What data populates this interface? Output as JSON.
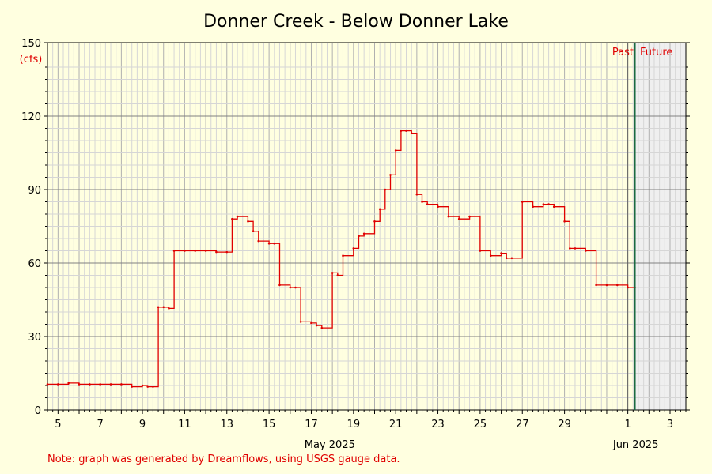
{
  "chart_data": {
    "type": "line",
    "title": "Donner Creek - Below Donner Lake",
    "ylabel": "(cfs)",
    "ylim": [
      0,
      150
    ],
    "yticks": [
      0,
      30,
      60,
      90,
      120,
      150
    ],
    "xlim": [
      "2025-05-04T12:00",
      "2025-06-03T18:00"
    ],
    "xticks": [
      "5",
      "7",
      "9",
      "11",
      "13",
      "15",
      "17",
      "19",
      "21",
      "23",
      "25",
      "27",
      "29",
      "1",
      "3"
    ],
    "month_labels": [
      "May 2025",
      "Jun 2025"
    ],
    "grid": true,
    "now": "2025-06-01T08:00",
    "past_label": "Past",
    "future_label": "Future",
    "series": [
      {
        "color": "#e00000",
        "x": [
          "2025-05-04T12:00",
          "2025-05-05T00:00",
          "2025-05-05T12:00",
          "2025-05-06T00:00",
          "2025-05-06T12:00",
          "2025-05-07T00:00",
          "2025-05-07T12:00",
          "2025-05-08T00:00",
          "2025-05-08T12:00",
          "2025-05-09T00:00",
          "2025-05-09T06:00",
          "2025-05-09T12:00",
          "2025-05-09T18:00",
          "2025-05-10T00:00",
          "2025-05-10T06:00",
          "2025-05-10T12:00",
          "2025-05-11T00:00",
          "2025-05-11T12:00",
          "2025-05-12T00:00",
          "2025-05-12T12:00",
          "2025-05-13T00:00",
          "2025-05-13T06:00",
          "2025-05-13T12:00",
          "2025-05-14T00:00",
          "2025-05-14T06:00",
          "2025-05-14T12:00",
          "2025-05-15T00:00",
          "2025-05-15T06:00",
          "2025-05-15T12:00",
          "2025-05-16T00:00",
          "2025-05-16T06:00",
          "2025-05-16T12:00",
          "2025-05-17T00:00",
          "2025-05-17T06:00",
          "2025-05-17T12:00",
          "2025-05-18T00:00",
          "2025-05-18T06:00",
          "2025-05-18T12:00",
          "2025-05-19T00:00",
          "2025-05-19T06:00",
          "2025-05-19T12:00",
          "2025-05-20T00:00",
          "2025-05-20T06:00",
          "2025-05-20T12:00",
          "2025-05-20T18:00",
          "2025-05-21T00:00",
          "2025-05-21T06:00",
          "2025-05-21T12:00",
          "2025-05-21T18:00",
          "2025-05-22T00:00",
          "2025-05-22T06:00",
          "2025-05-22T12:00",
          "2025-05-23T00:00",
          "2025-05-23T12:00",
          "2025-05-24T00:00",
          "2025-05-24T12:00",
          "2025-05-25T00:00",
          "2025-05-25T12:00",
          "2025-05-26T00:00",
          "2025-05-26T06:00",
          "2025-05-26T12:00",
          "2025-05-27T00:00",
          "2025-05-27T12:00",
          "2025-05-28T00:00",
          "2025-05-28T06:00",
          "2025-05-28T12:00",
          "2025-05-29T00:00",
          "2025-05-29T06:00",
          "2025-05-29T12:00",
          "2025-05-30T00:00",
          "2025-05-30T12:00",
          "2025-05-31T00:00",
          "2025-05-31T12:00",
          "2025-06-01T00:00",
          "2025-06-01T08:00"
        ],
        "y": [
          10.5,
          10.5,
          11,
          10.5,
          10.5,
          10.5,
          10.5,
          10.5,
          9.5,
          10,
          9.5,
          9.5,
          42,
          42,
          41.5,
          65,
          65,
          65,
          65,
          64.5,
          64.5,
          78,
          79,
          77,
          73,
          69,
          68,
          68,
          51,
          50,
          50,
          36,
          35.5,
          34.5,
          33.5,
          56,
          55,
          63,
          66,
          71,
          72,
          77,
          82,
          90,
          96,
          106,
          114,
          114,
          113,
          88,
          85,
          84,
          83,
          79,
          78,
          79,
          65,
          63,
          64,
          62,
          62,
          85,
          83,
          84,
          84,
          83,
          77,
          66,
          66,
          65,
          51,
          51,
          51,
          50,
          50
        ]
      }
    ]
  },
  "note": "Note: graph was generated by Dreamflows, using USGS gauge data."
}
